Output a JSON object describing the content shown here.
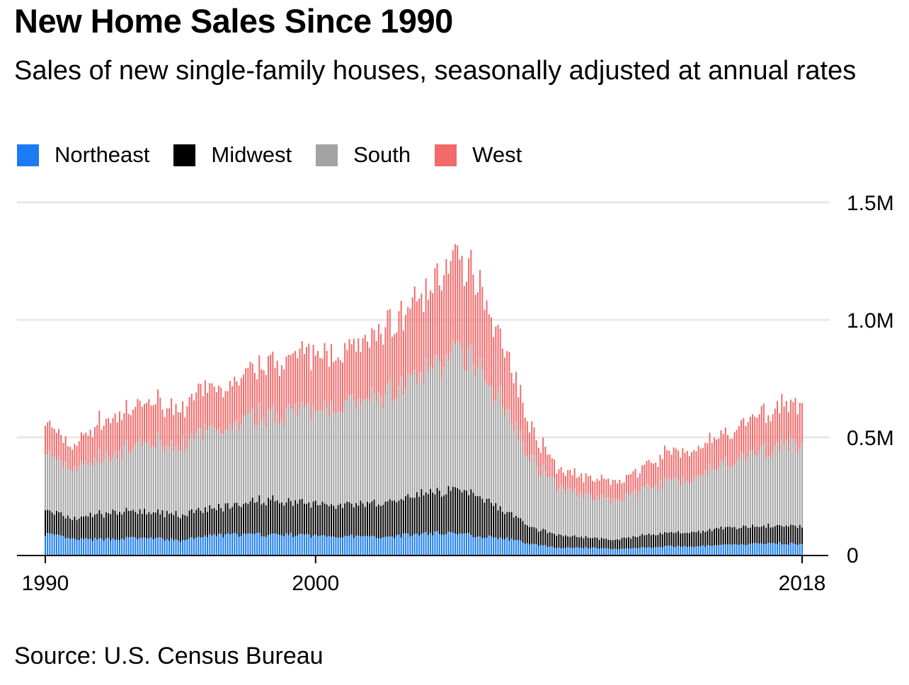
{
  "title": "New Home Sales Since 1990",
  "subtitle": "Sales of new single-family houses, seasonally adjusted at annual rates",
  "source": "Source: U.S. Census Bureau",
  "legend": [
    {
      "name": "Northeast",
      "color": "#1a7cf5"
    },
    {
      "name": "Midwest",
      "color": "#000000"
    },
    {
      "name": "South",
      "color": "#a3a3a3"
    },
    {
      "name": "West",
      "color": "#f26a6a"
    }
  ],
  "chart_data": {
    "type": "bar",
    "stacked": true,
    "title": "New Home Sales Since 1990",
    "subtitle": "Sales of new single-family houses, seasonally adjusted at annual rates",
    "x": [
      "1990",
      "1991",
      "1992",
      "1993",
      "1994",
      "1995",
      "1996",
      "1997",
      "1998",
      "1999",
      "2000",
      "2001",
      "2002",
      "2003",
      "2004",
      "2005",
      "2006",
      "2007",
      "2008",
      "2009",
      "2010",
      "2011",
      "2012",
      "2013",
      "2014",
      "2015",
      "2016",
      "2017",
      "2018"
    ],
    "series": [
      {
        "name": "Northeast",
        "color": "#1a7cf5",
        "values": [
          90,
          65,
          65,
          70,
          70,
          60,
          80,
          85,
          85,
          85,
          80,
          80,
          75,
          80,
          90,
          95,
          80,
          70,
          45,
          30,
          30,
          25,
          30,
          35,
          35,
          40,
          45,
          50,
          45
        ]
      },
      {
        "name": "Midwest",
        "color": "#000000",
        "values": [
          100,
          85,
          110,
          115,
          110,
          110,
          115,
          125,
          150,
          145,
          135,
          135,
          140,
          150,
          175,
          180,
          180,
          120,
          70,
          55,
          45,
          40,
          50,
          60,
          60,
          70,
          75,
          75,
          75
        ]
      },
      {
        "name": "South",
        "color": "#a3a3a3",
        "values": [
          250,
          210,
          240,
          260,
          300,
          300,
          325,
          340,
          360,
          380,
          400,
          410,
          440,
          470,
          510,
          580,
          560,
          450,
          290,
          200,
          175,
          165,
          190,
          215,
          230,
          275,
          300,
          330,
          360
        ]
      },
      {
        "name": "West",
        "color": "#f26a6a",
        "values": [
          130,
          100,
          150,
          155,
          180,
          160,
          175,
          180,
          215,
          230,
          240,
          230,
          255,
          300,
          330,
          395,
          360,
          250,
          130,
          75,
          80,
          75,
          85,
          125,
          120,
          125,
          145,
          165,
          180
        ]
      }
    ],
    "y_ticks": [
      "0",
      "0.5M",
      "1.0M",
      "1.5M"
    ],
    "x_ticks": [
      "1990",
      "2000",
      "2018"
    ],
    "ylim": [
      0,
      1500
    ],
    "y_unit": "thousands",
    "xlabel": "",
    "ylabel": ""
  }
}
